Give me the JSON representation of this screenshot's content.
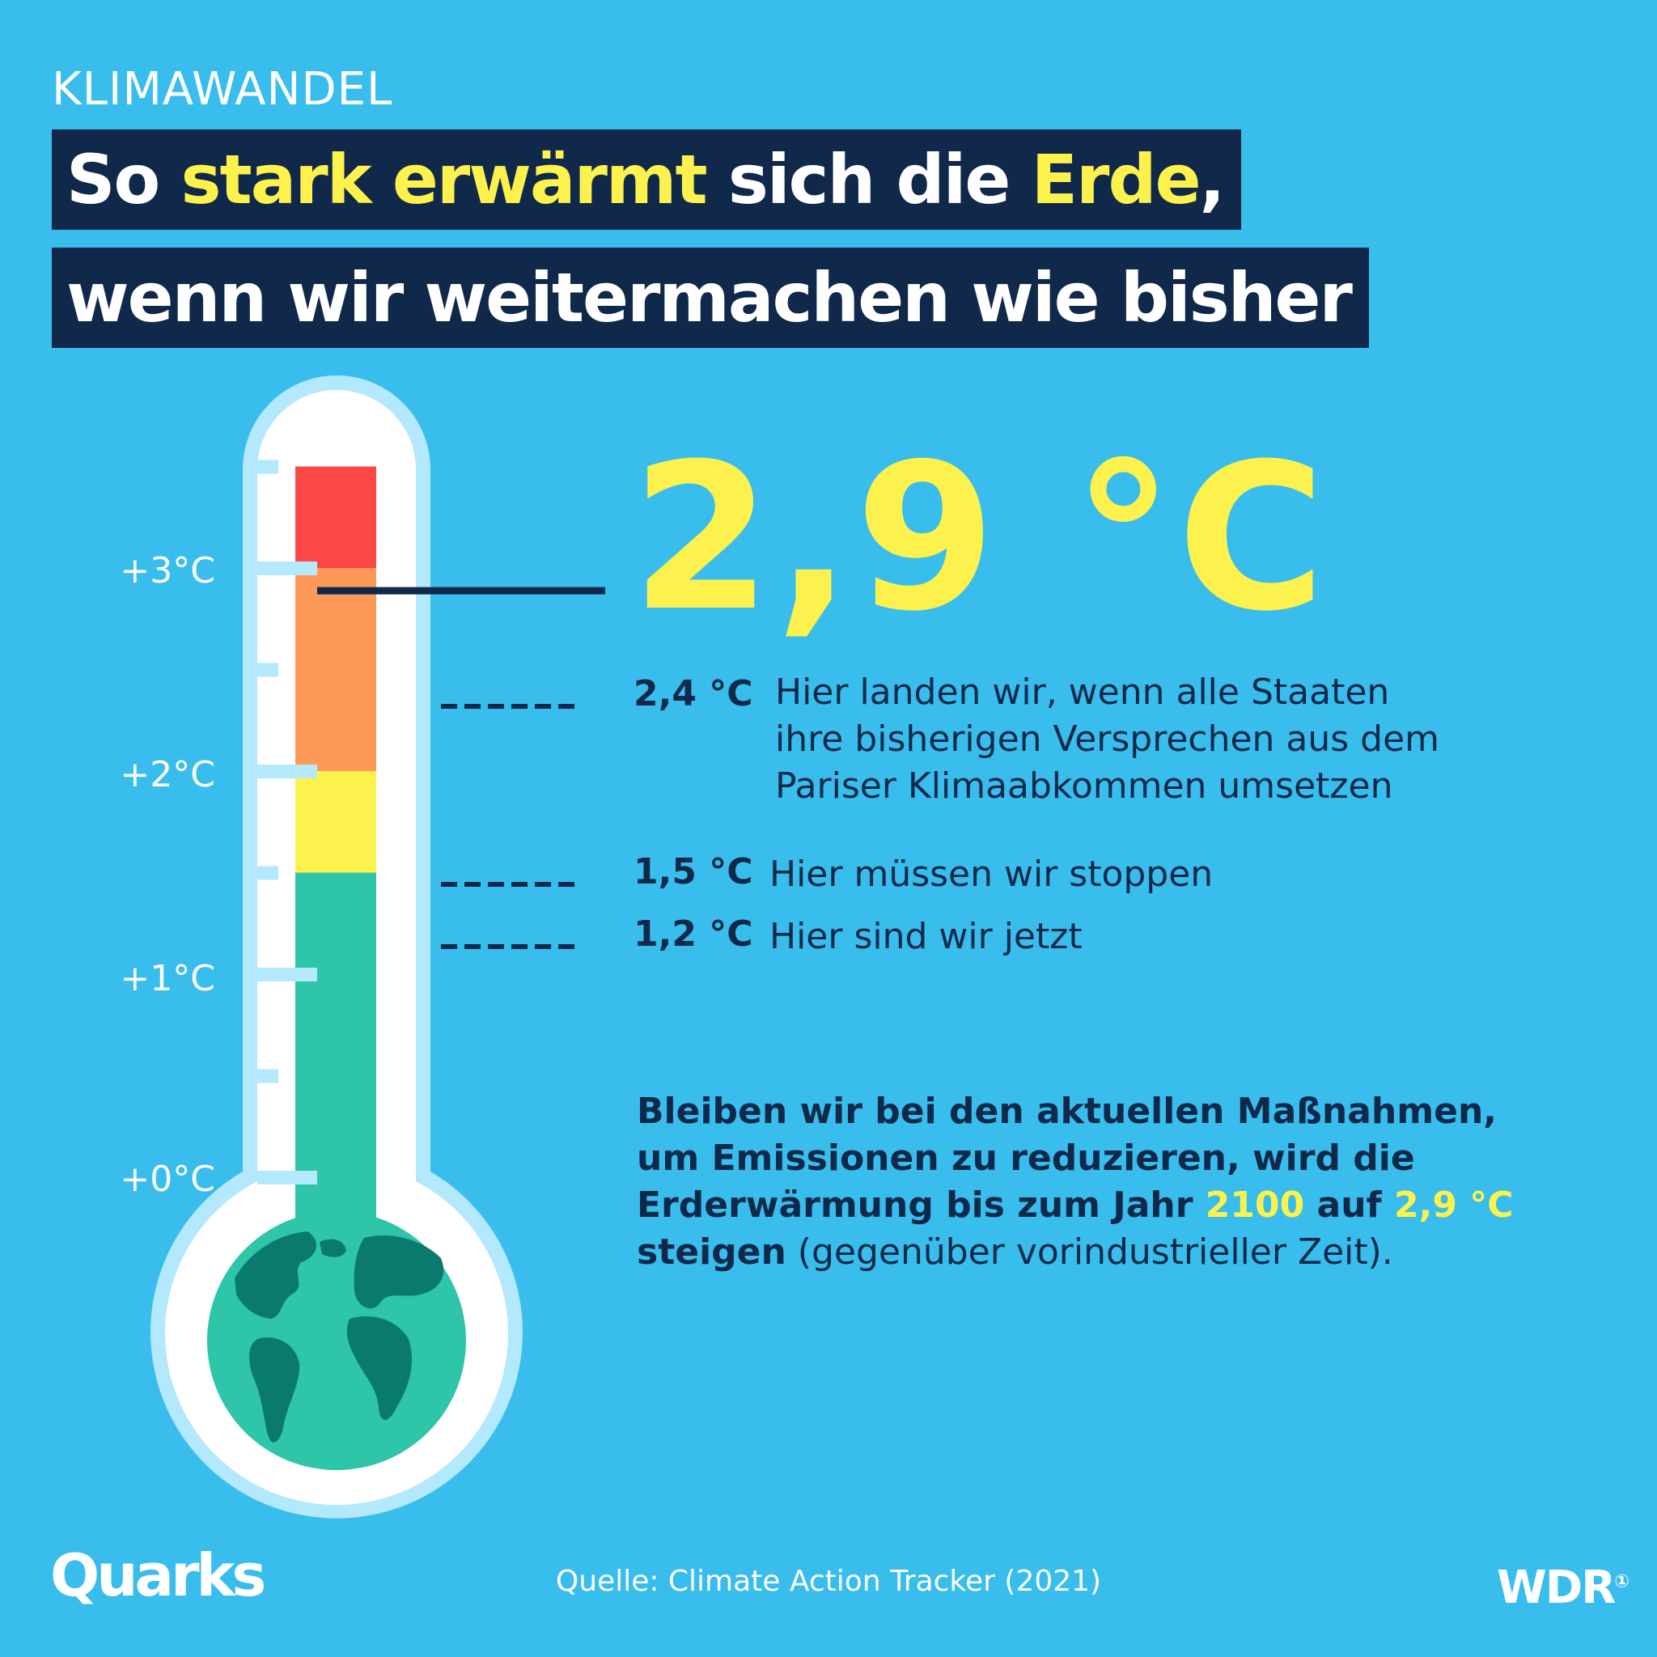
{
  "kicker": "KLIMAWANDEL",
  "headline": {
    "line1": {
      "p1": "So ",
      "h1": "stark erwärmt",
      "p2": " sich die ",
      "h2": "Erde",
      "p3": ","
    },
    "line2": "wenn wir weitermachen wie bisher"
  },
  "chart_data": {
    "type": "thermometer",
    "unit": "°C",
    "axis": {
      "ticks": [
        "+0°C",
        "+1°C",
        "+2°C",
        "+3°C"
      ],
      "min": 0,
      "max": 3.5
    },
    "bands": [
      {
        "from": 0,
        "to": 1.5,
        "color": "#2ec5a8"
      },
      {
        "from": 1.5,
        "to": 2.0,
        "color": "#fdf24d"
      },
      {
        "from": 2.0,
        "to": 3.0,
        "color": "#fd9a5a"
      },
      {
        "from": 3.0,
        "to": 3.5,
        "color": "#fd4848"
      }
    ],
    "highlight": {
      "value": 2.9,
      "label": "2,9 °C"
    },
    "markers": [
      {
        "value": 2.4,
        "label": "2,4 °C",
        "text": [
          "Hier landen wir, wenn alle Staaten",
          "ihre bisherigen Versprechen aus dem",
          "Pariser Klimaabkommen umsetzen"
        ]
      },
      {
        "value": 1.5,
        "label": "1,5 °C",
        "text": [
          "Hier müssen wir stoppen"
        ]
      },
      {
        "value": 1.2,
        "label": "1,2 °C",
        "text": [
          "Hier sind wir jetzt"
        ]
      }
    ]
  },
  "summary": {
    "t1": "Bleiben wir bei den aktuellen Maßnahmen, um Emissionen zu reduzieren, wird die Erderwärmung bis zum Jahr ",
    "year": "2100",
    "t2": " auf ",
    "value": "2,9 °C",
    "t3": "steigen",
    "t4": " (gegenüber vorindustrieller Zeit)."
  },
  "footer": {
    "logo": "Quarks",
    "source": "Quelle: Climate Action Tracker (2021)",
    "broadcaster": "WDR",
    "broadcaster_mark": "①"
  },
  "colors": {
    "background": "#38bdec",
    "navy": "#10294a",
    "yellow": "#fdf24d",
    "globe": "#2ec5a8",
    "land": "#0b7a6e"
  }
}
